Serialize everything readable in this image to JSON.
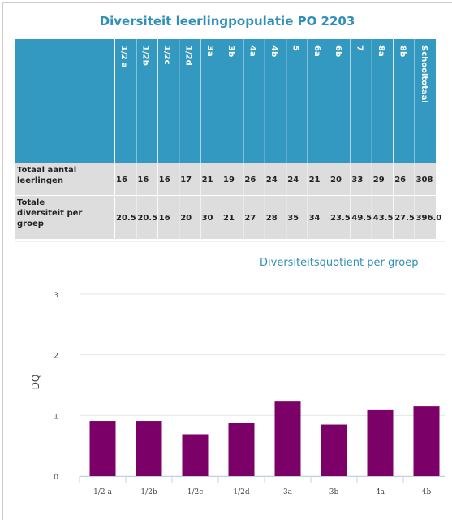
{
  "header": {
    "title": "Diversiteit leerlingpopulatie PO 2203"
  },
  "table": {
    "columns": [
      "1/2 a",
      "1/2b",
      "1/2c",
      "1/2d",
      "3a",
      "3b",
      "4a",
      "4b",
      "5",
      "6a",
      "6b",
      "7",
      "8a",
      "8b",
      "Schooltotaal"
    ],
    "rows": [
      {
        "label": "Totaal aantal leerlingen",
        "cells": [
          "16",
          "16",
          "16",
          "17",
          "21",
          "19",
          "26",
          "24",
          "24",
          "21",
          "20",
          "33",
          "29",
          "26",
          "308"
        ]
      },
      {
        "label": "Totale diversiteit per groep",
        "cells": [
          "20.5",
          "20.5",
          "16",
          "20",
          "30",
          "21",
          "27",
          "28",
          "35",
          "34",
          "23.5",
          "49.5",
          "43.5",
          "27.5",
          "396.0"
        ]
      }
    ]
  },
  "chart_data": {
    "type": "bar",
    "title": "Diversiteitsquotient per groep",
    "y_label": "DQ",
    "categories": [
      "1/2 a",
      "1/2b",
      "1/2c",
      "1/2d",
      "3a",
      "3b",
      "4a",
      "4b"
    ],
    "values": [
      0.91,
      0.91,
      0.69,
      0.88,
      1.23,
      0.85,
      1.1,
      1.15
    ],
    "color": "#7b0068",
    "ylim": [
      0,
      3
    ],
    "yticks": [
      0,
      1,
      2,
      3
    ],
    "grid": true
  }
}
